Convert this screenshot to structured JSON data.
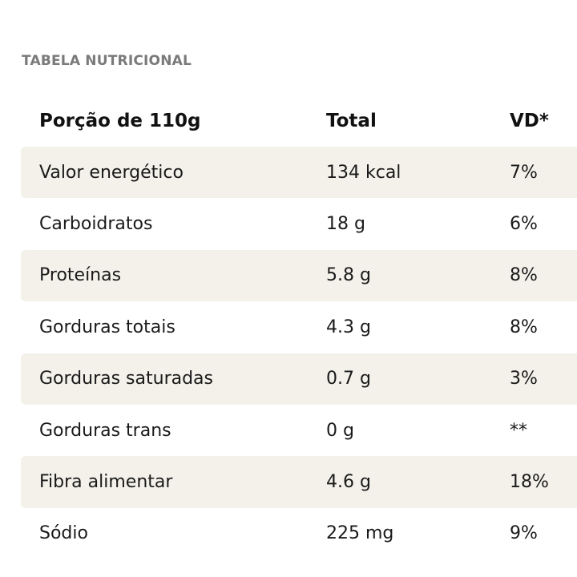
{
  "section_title": "TABELA NUTRICIONAL",
  "header": {
    "portion": "Porção de 110g",
    "total": "Total",
    "vd": "VD*"
  },
  "rows": [
    {
      "name": "Valor energético",
      "total": "134 kcal",
      "vd": "7%"
    },
    {
      "name": "Carboidratos",
      "total": "18 g",
      "vd": "6%"
    },
    {
      "name": "Proteínas",
      "total": "5.8 g",
      "vd": "8%"
    },
    {
      "name": "Gorduras totais",
      "total": "4.3 g",
      "vd": "8%"
    },
    {
      "name": "Gorduras saturadas",
      "total": "0.7 g",
      "vd": "3%"
    },
    {
      "name": "Gorduras trans",
      "total": "0 g",
      "vd": "**"
    },
    {
      "name": "Fibra alimentar",
      "total": "4.6 g",
      "vd": "18%"
    },
    {
      "name": "Sódio",
      "total": "225 mg",
      "vd": "9%"
    }
  ],
  "colors": {
    "shaded_row": "#f3f1ea",
    "title": "#7a7a7a",
    "text": "#1a1a1a"
  }
}
